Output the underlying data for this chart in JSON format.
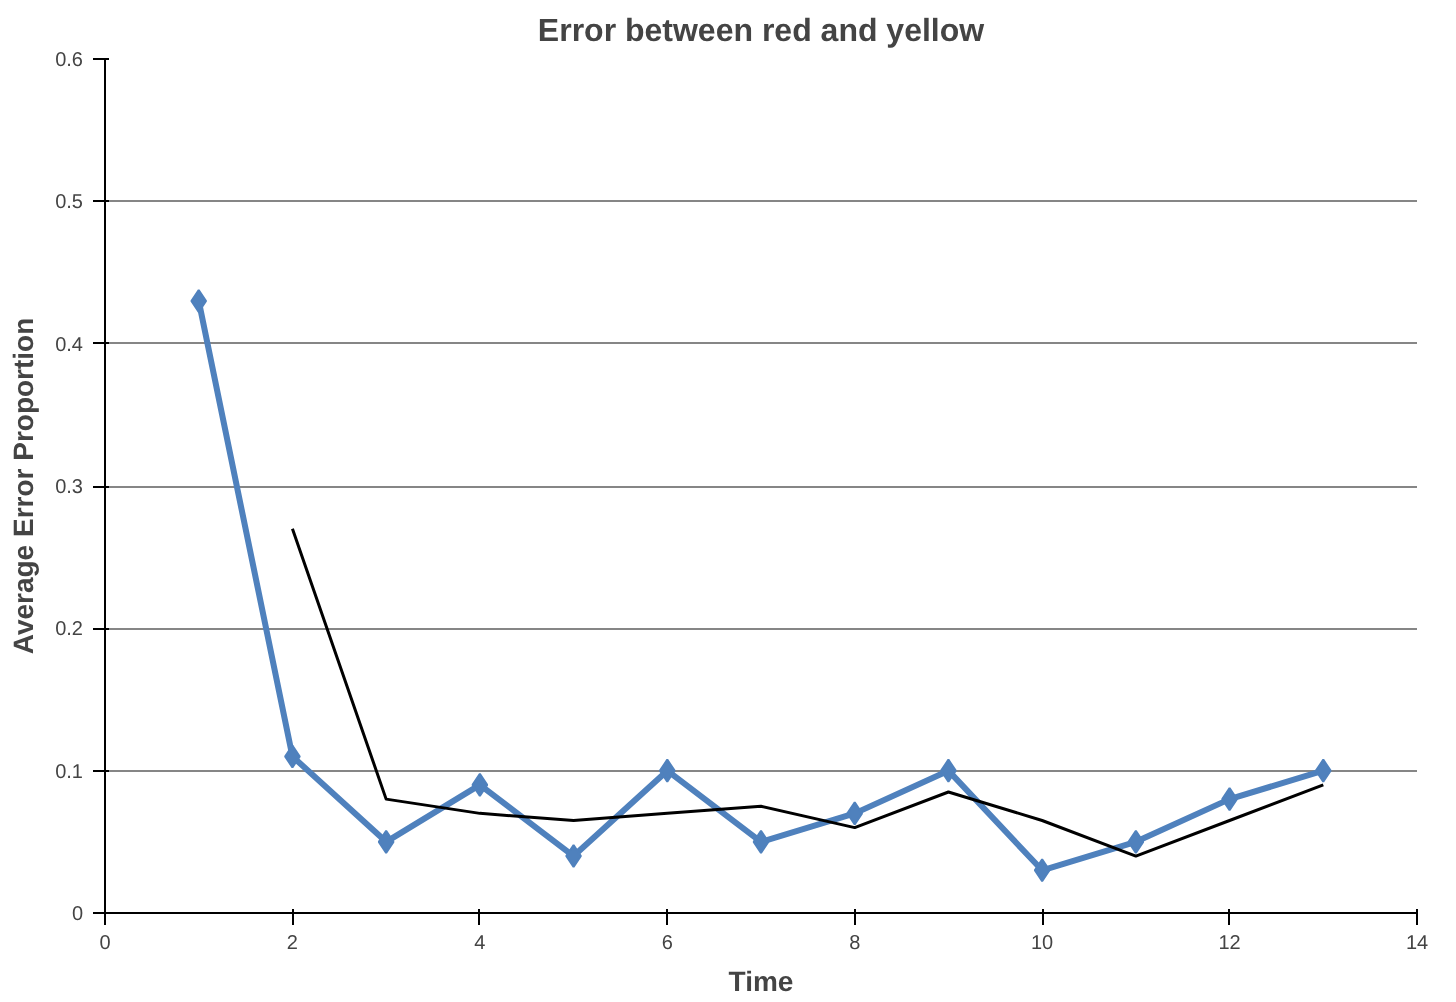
{
  "chart_data": {
    "type": "line",
    "title": "Error between red and yellow",
    "xlabel": "Time",
    "ylabel": "Average Error Proportion",
    "xlim": [
      0,
      14
    ],
    "xticks": [
      0,
      2,
      4,
      6,
      8,
      10,
      12,
      14
    ],
    "ylim": [
      0,
      0.6
    ],
    "yticks": [
      0,
      0.1,
      0.2,
      0.3,
      0.4,
      0.5,
      0.6
    ],
    "grid": "y",
    "series": [
      {
        "color": "#4f81bd",
        "marker": "diamond",
        "x": [
          1,
          2,
          3,
          4,
          5,
          6,
          7,
          8,
          9,
          10,
          11,
          12,
          13
        ],
        "values": [
          0.43,
          0.11,
          0.05,
          0.09,
          0.04,
          0.1,
          0.05,
          0.07,
          0.1,
          0.03,
          0.05,
          0.08,
          0.1
        ]
      },
      {
        "color": "#000000",
        "marker": "none",
        "x": [
          2,
          3,
          4,
          5,
          6,
          7,
          8,
          9,
          10,
          11,
          12,
          13
        ],
        "values": [
          0.27,
          0.08,
          0.07,
          0.065,
          0.07,
          0.075,
          0.06,
          0.085,
          0.065,
          0.04,
          0.065,
          0.09
        ]
      }
    ]
  }
}
